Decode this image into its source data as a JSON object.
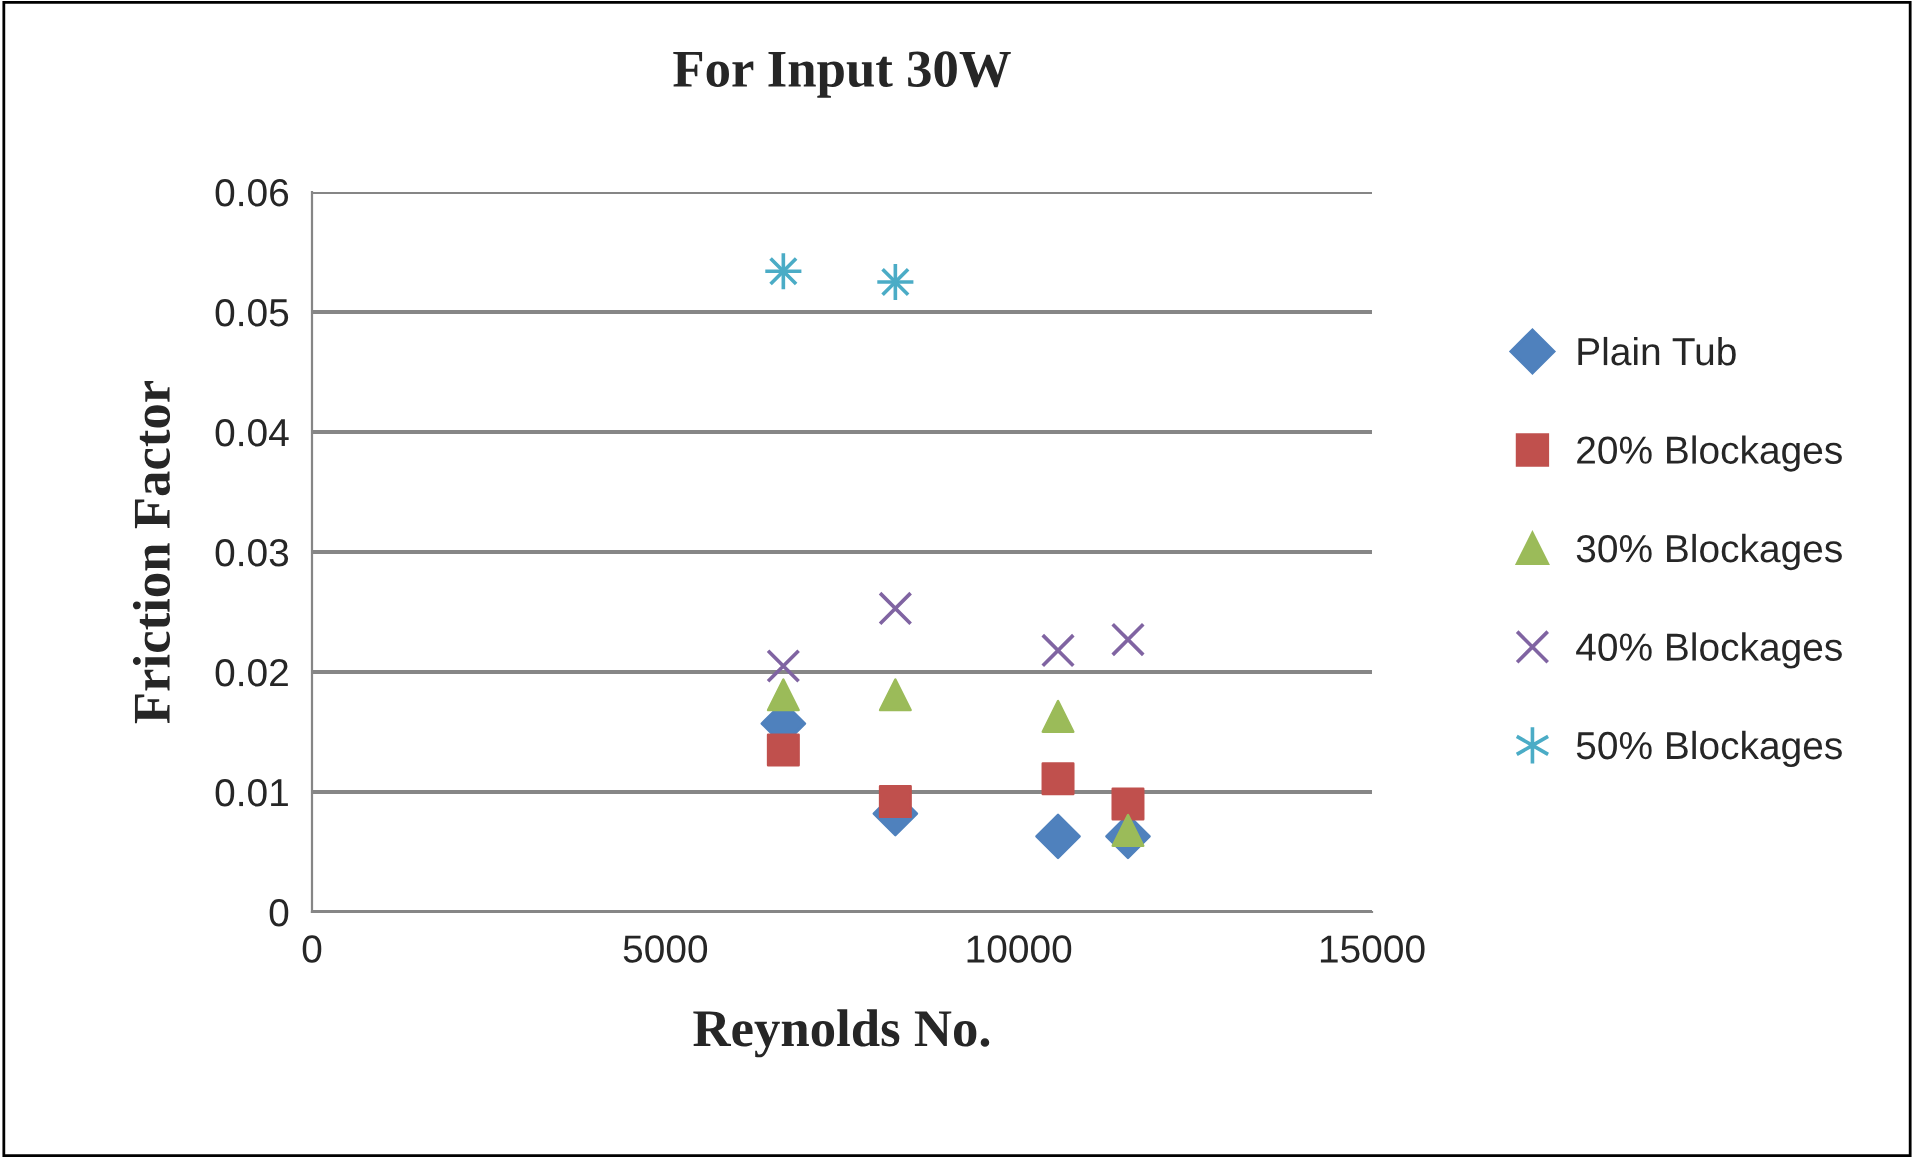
{
  "chart_data": {
    "type": "scatter",
    "title": "For Input 30W",
    "xlabel": "Reynolds No.",
    "ylabel": "Friction Factor",
    "xlim": [
      0,
      15000
    ],
    "xticks": [
      0,
      5000,
      10000,
      15000
    ],
    "ylim": [
      0,
      0.06
    ],
    "yticks": [
      0,
      0.01,
      0.02,
      0.03,
      0.04,
      0.05,
      0.06
    ],
    "grid": "y",
    "legend": "right",
    "series": [
      {
        "name": "Plain Tub",
        "color": "#4f81bd",
        "marker": "diamond",
        "x": [
          6670,
          8255,
          10557,
          11547
        ],
        "values": [
          0.0157,
          0.0082,
          0.0063,
          0.0063
        ]
      },
      {
        "name": "20% Blockages",
        "color": "#c0504d",
        "marker": "square",
        "x": [
          6670,
          8255,
          10557,
          11547
        ],
        "values": [
          0.0135,
          0.0092,
          0.0111,
          0.009
        ]
      },
      {
        "name": "30% Blockages",
        "color": "#9bbb59",
        "marker": "triangle",
        "x": [
          6670,
          8255,
          10557,
          11547
        ],
        "values": [
          0.0181,
          0.0181,
          0.0163,
          0.0068
        ]
      },
      {
        "name": "40% Blockages",
        "color": "#8064a2",
        "marker": "cross",
        "x": [
          6670,
          8255,
          10557,
          11547
        ],
        "values": [
          0.0205,
          0.0253,
          0.0218,
          0.0227
        ]
      },
      {
        "name": "50% Blockages",
        "color": "#4bacc6",
        "marker": "star",
        "x": [
          6670,
          8255
        ],
        "values": [
          0.0534,
          0.0525
        ]
      }
    ]
  }
}
